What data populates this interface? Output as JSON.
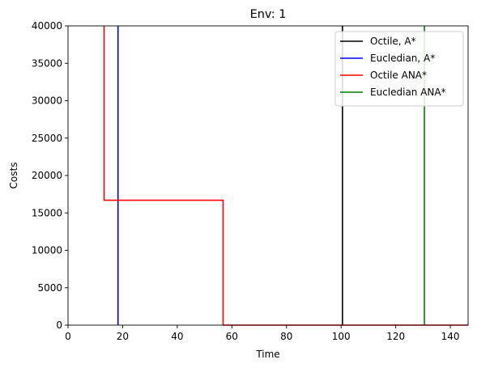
{
  "chart_data": {
    "type": "line",
    "title": "Env: 1",
    "xlabel": "Time",
    "ylabel": "Costs",
    "xlim": [
      0,
      146.5
    ],
    "ylim": [
      0,
      40000
    ],
    "xticks": [
      0,
      20,
      40,
      60,
      80,
      100,
      120,
      140
    ],
    "yticks": [
      0,
      5000,
      10000,
      15000,
      20000,
      25000,
      30000,
      35000,
      40000
    ],
    "grid": false,
    "legend_position": "top-right",
    "series": [
      {
        "name": "Octile, A*",
        "color": "#000000",
        "x": [
          100.5,
          100.5
        ],
        "y": [
          40000,
          0
        ]
      },
      {
        "name": "Eucledian, A*",
        "color": "#0000ff",
        "x": [
          18.3,
          18.3
        ],
        "y": [
          40000,
          0
        ]
      },
      {
        "name": "Octile ANA*",
        "color": "#ff0000",
        "x": [
          13.2,
          13.2,
          56.8,
          56.8,
          146.5
        ],
        "y": [
          40000,
          16700,
          16700,
          0,
          0
        ]
      },
      {
        "name": "Eucledian ANA*",
        "color": "#008000",
        "x": [
          130.5,
          130.5
        ],
        "y": [
          40000,
          0
        ]
      }
    ]
  }
}
